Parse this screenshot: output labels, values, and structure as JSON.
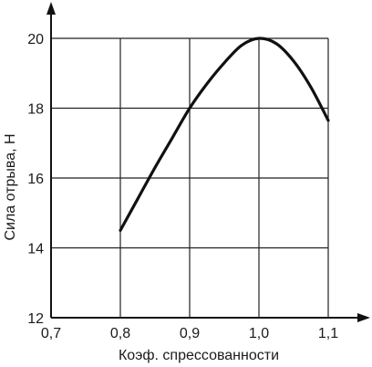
{
  "chart_data": {
    "type": "line",
    "title": "",
    "xlabel": "Коэф. спрессованности",
    "ylabel": "Сила отрыва, Н",
    "xlim": [
      0.7,
      1.1
    ],
    "ylim": [
      12,
      20
    ],
    "x_ticks": [
      0.7,
      0.8,
      0.9,
      1.0,
      1.1
    ],
    "x_tick_labels": [
      "0,7",
      "0,8",
      "0,9",
      "1,0",
      "1,1"
    ],
    "y_ticks": [
      12,
      14,
      16,
      18,
      20
    ],
    "y_tick_labels": [
      "12",
      "14",
      "16",
      "18",
      "20"
    ],
    "grid": true,
    "legend": "none",
    "series": [
      {
        "color": "#111111",
        "x": [
          0.8,
          0.825,
          0.85,
          0.875,
          0.9,
          0.925,
          0.95,
          0.975,
          1.0,
          1.025,
          1.05,
          1.075,
          1.1
        ],
        "y": [
          14.5,
          15.4,
          16.3,
          17.15,
          18.0,
          18.7,
          19.3,
          19.8,
          20.0,
          19.85,
          19.35,
          18.6,
          17.65
        ]
      }
    ],
    "axis_color": "#111111",
    "grid_color": "#222222"
  }
}
